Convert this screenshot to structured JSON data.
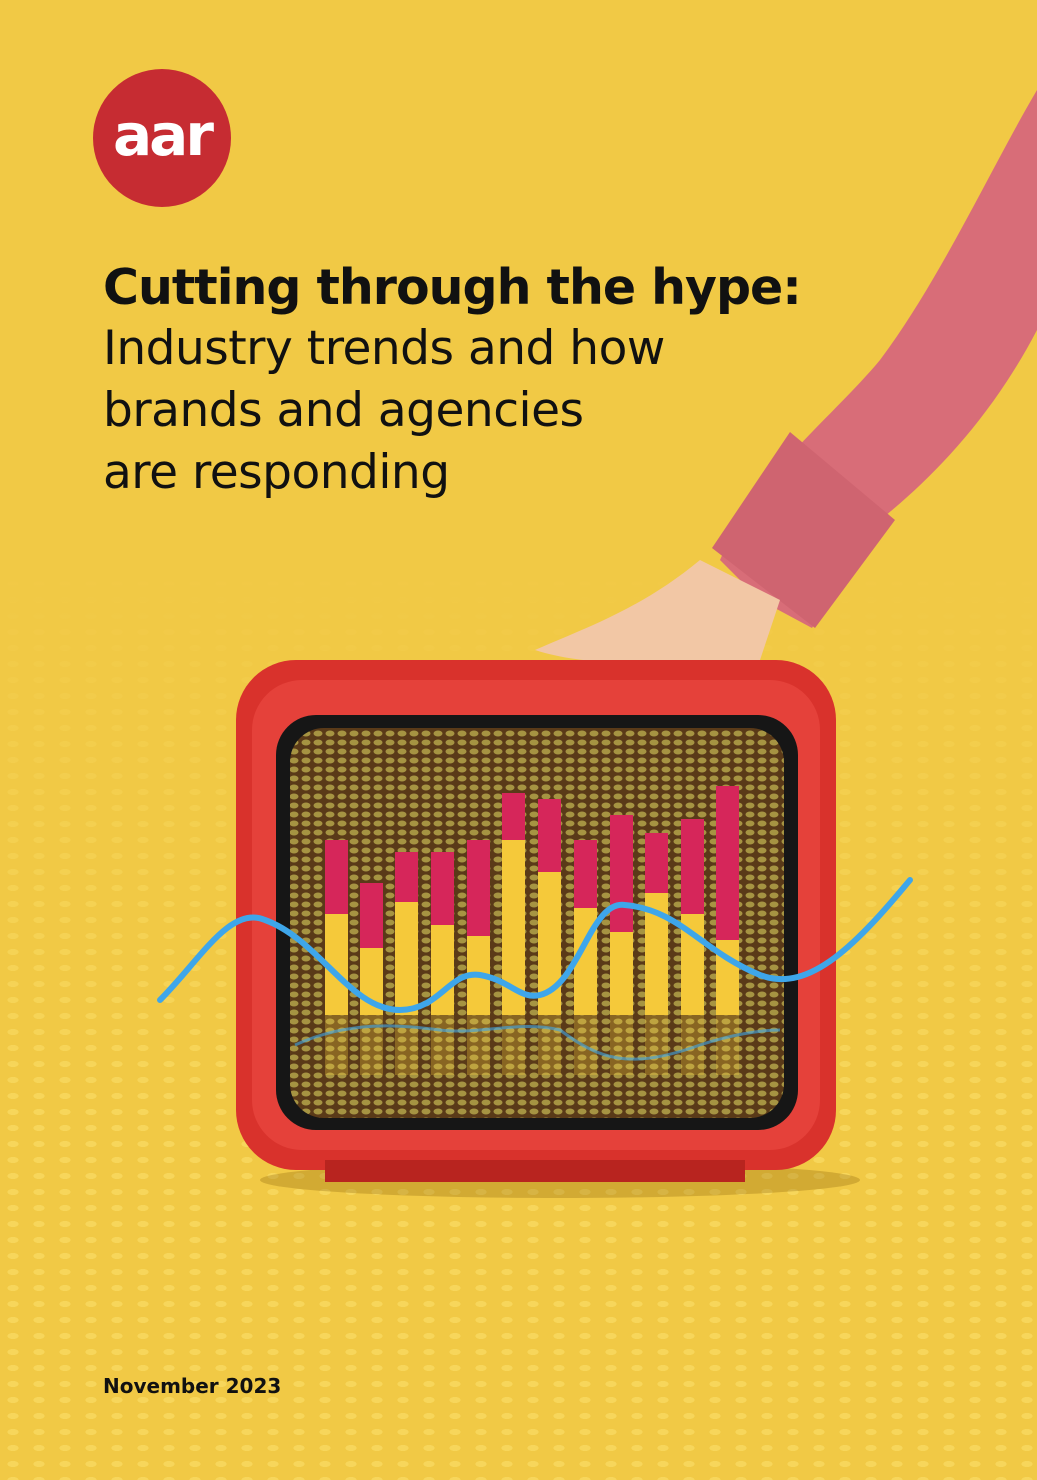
{
  "logo": {
    "text": "aar",
    "color": "#c62c32"
  },
  "title": {
    "headline": "Cutting through the hype:",
    "subtitle_lines": [
      "Industry trends and how",
      "brands and agencies",
      "are responding"
    ]
  },
  "date": "November 2023",
  "colors": {
    "background": "#f1c945",
    "tv": "#d9322c",
    "bar_top": "#d6265a",
    "bar_bottom": "#f5c93a",
    "wave": "#3ea6ea",
    "sleeve": "#d86d78"
  },
  "illustration": {
    "subject": "hand holding red retro tv with bar chart on screen"
  }
}
